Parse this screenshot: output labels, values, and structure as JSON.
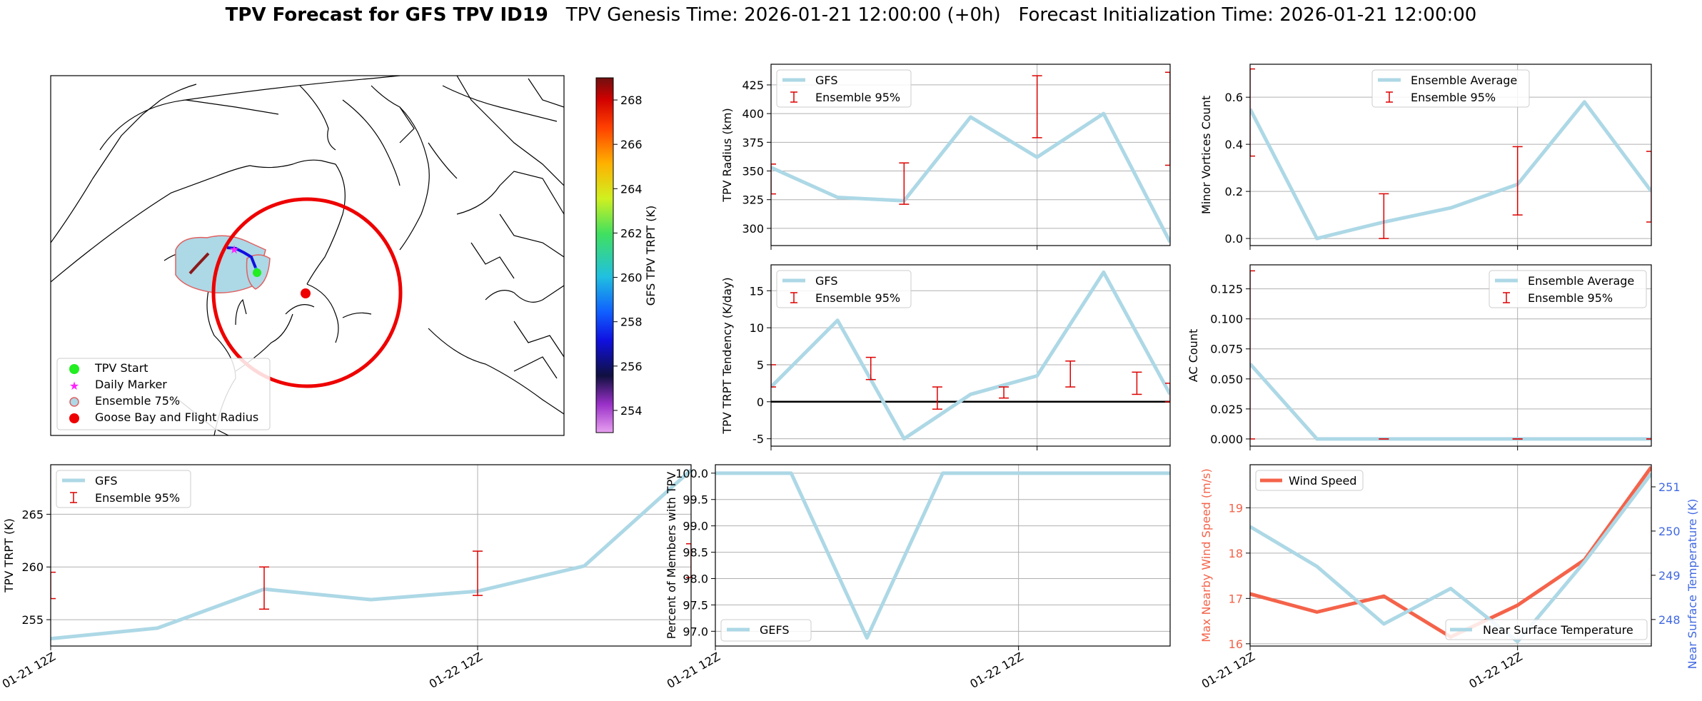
{
  "header": {
    "title_bold": "TPV Forecast for GFS TPV ID19",
    "genesis": "TPV Genesis Time: 2026-01-21 12:00:00 (+0h)",
    "init": "Forecast Initialization Time: 2026-01-21 12:00:00"
  },
  "map": {
    "colorbar_label": "GFS TPV TRPT (K)",
    "colorbar_ticks": [
      254,
      256,
      258,
      260,
      262,
      264,
      266,
      268
    ],
    "colorbar_range": [
      253,
      269
    ],
    "legend": [
      "TPV Start",
      "Daily Marker",
      "Ensemble 75%",
      "Goose Bay and Flight Radius"
    ],
    "colors": {
      "start": "#22ee22",
      "marker": "#ff22ff",
      "ensemble_fill": "#add8e6",
      "ensemble_edge": "#e06060",
      "goose": "#ee0000"
    }
  },
  "chart_data": [
    {
      "id": "radius",
      "type": "line",
      "x": [
        "2026-01-21 12Z",
        "2026-01-21 18Z",
        "2026-01-22 00Z",
        "2026-01-22 06Z",
        "2026-01-22 12Z",
        "2026-01-22 18Z",
        "2026-01-23 00Z"
      ],
      "series": [
        {
          "name": "GFS",
          "values": [
            353,
            327,
            324,
            397,
            362,
            400,
            288
          ],
          "color": "#add8e6"
        }
      ],
      "errorbars": {
        "name": "Ensemble 95%",
        "x": [
          "2026-01-21 12Z",
          "2026-01-22 00Z",
          "2026-01-22 12Z",
          "2026-01-23 00Z"
        ],
        "low": [
          330,
          321,
          379,
          355
        ],
        "high": [
          356,
          357,
          433,
          436
        ]
      },
      "ylabel": "TPV Radius (km)",
      "yticks": [
        300,
        325,
        350,
        375,
        400,
        425
      ],
      "ylim": [
        285,
        443
      ],
      "legend": "top-left",
      "grid": true
    },
    {
      "id": "minor",
      "type": "line",
      "x": [
        "2026-01-21 12Z",
        "2026-01-21 18Z",
        "2026-01-22 00Z",
        "2026-01-22 06Z",
        "2026-01-22 12Z",
        "2026-01-22 18Z",
        "2026-01-23 00Z"
      ],
      "series": [
        {
          "name": "Ensemble Average",
          "values": [
            0.55,
            0.0,
            0.07,
            0.13,
            0.23,
            0.58,
            0.2
          ],
          "color": "#add8e6"
        }
      ],
      "errorbars": {
        "name": "Ensemble 95%",
        "x": [
          "2026-01-21 12Z",
          "2026-01-22 00Z",
          "2026-01-22 12Z",
          "2026-01-23 00Z"
        ],
        "low": [
          0.35,
          0.0,
          0.1,
          0.07
        ],
        "high": [
          0.72,
          0.19,
          0.39,
          0.37
        ]
      },
      "ylabel": "Minor Vortices Count",
      "yticks": [
        0.0,
        0.2,
        0.4,
        0.6
      ],
      "ytick_labels": [
        "0.0",
        "0.2",
        "0.4",
        "0.6"
      ],
      "ylim": [
        -0.03,
        0.74
      ],
      "legend": "top-center",
      "grid": true
    },
    {
      "id": "tendency",
      "type": "line",
      "x": [
        "2026-01-21 12Z",
        "2026-01-21 18Z",
        "2026-01-22 00Z",
        "2026-01-22 06Z",
        "2026-01-22 12Z",
        "2026-01-22 18Z",
        "2026-01-23 00Z"
      ],
      "series": [
        {
          "name": "GFS",
          "values": [
            2,
            11,
            -5,
            1,
            3.5,
            17.5,
            1
          ],
          "color": "#add8e6"
        }
      ],
      "errorbars": {
        "name": "Ensemble 95%",
        "x": [
          "2026-01-21 12Z",
          "2026-01-21 21Z",
          "2026-01-22 03Z",
          "2026-01-22 09Z",
          "2026-01-22 15Z",
          "2026-01-22 21Z",
          "2026-01-23 00Z"
        ],
        "low": [
          2,
          3,
          -1,
          0.5,
          2,
          1,
          0
        ],
        "high": [
          5,
          6,
          2,
          2,
          5.5,
          4,
          2.5
        ]
      },
      "ylabel": "TPV TRPT Tendency (K/day)",
      "yticks": [
        -5,
        0,
        5,
        10,
        15
      ],
      "ylim": [
        -6,
        18.5
      ],
      "zero_line": true,
      "legend": "top-left",
      "grid": true
    },
    {
      "id": "ac",
      "type": "line",
      "x": [
        "2026-01-21 12Z",
        "2026-01-21 18Z",
        "2026-01-22 00Z",
        "2026-01-22 06Z",
        "2026-01-22 12Z",
        "2026-01-22 18Z",
        "2026-01-23 00Z"
      ],
      "series": [
        {
          "name": "Ensemble Average",
          "values": [
            0.0625,
            0,
            0,
            0,
            0,
            0,
            0
          ],
          "color": "#add8e6"
        }
      ],
      "errorbars": {
        "name": "Ensemble 95%",
        "x": [
          "2026-01-21 12Z",
          "2026-01-22 00Z",
          "2026-01-22 12Z",
          "2026-01-23 00Z"
        ],
        "low": [
          0,
          0,
          0,
          0
        ],
        "high": [
          0.14,
          0,
          0,
          0
        ]
      },
      "ylabel": "AC Count",
      "yticks": [
        0.0,
        0.025,
        0.05,
        0.075,
        0.1,
        0.125
      ],
      "ytick_labels": [
        "0.000",
        "0.025",
        "0.050",
        "0.075",
        "0.100",
        "0.125"
      ],
      "ylim": [
        -0.006,
        0.145
      ],
      "legend": "top-right",
      "grid": true
    },
    {
      "id": "trpt",
      "type": "line",
      "x": [
        "2026-01-21 12Z",
        "2026-01-21 18Z",
        "2026-01-22 00Z",
        "2026-01-22 06Z",
        "2026-01-22 12Z",
        "2026-01-22 18Z",
        "2026-01-23 00Z"
      ],
      "series": [
        {
          "name": "GFS",
          "values": [
            253.2,
            254.2,
            257.9,
            256.9,
            257.7,
            260.1,
            269.2
          ],
          "color": "#add8e6"
        }
      ],
      "errorbars": {
        "name": "Ensemble 95%",
        "x": [
          "2026-01-21 12Z",
          "2026-01-22 00Z",
          "2026-01-22 12Z",
          "2026-01-23 00Z"
        ],
        "low": [
          257,
          256,
          257.3,
          259
        ],
        "high": [
          259.5,
          260,
          261.5,
          262.2
        ]
      },
      "ylabel": "TPV TRPT (K)",
      "yticks": [
        255,
        260,
        265
      ],
      "ylim": [
        252.5,
        269.7
      ],
      "legend": "top-left",
      "grid": true
    },
    {
      "id": "percent",
      "type": "line",
      "x": [
        "2026-01-21 12Z",
        "2026-01-21 18Z",
        "2026-01-22 00Z",
        "2026-01-22 06Z",
        "2026-01-22 12Z",
        "2026-01-22 18Z",
        "2026-01-23 00Z"
      ],
      "series": [
        {
          "name": "GEFS",
          "values": [
            100,
            100,
            96.875,
            100,
            100,
            100,
            100
          ],
          "color": "#add8e6"
        }
      ],
      "ylabel": "Percent of Members with TPV",
      "yticks": [
        97.0,
        97.5,
        98.0,
        98.5,
        99.0,
        99.5,
        100.0
      ],
      "ytick_labels": [
        "97.0",
        "97.5",
        "98.0",
        "98.5",
        "99.0",
        "99.5",
        "100.0"
      ],
      "ylim": [
        96.72,
        100.16
      ],
      "legend": "bottom-left",
      "grid": true
    },
    {
      "id": "wind",
      "type": "line",
      "x": [
        "2026-01-21 12Z",
        "2026-01-21 18Z",
        "2026-01-22 00Z",
        "2026-01-22 06Z",
        "2026-01-22 12Z",
        "2026-01-22 18Z",
        "2026-01-23 00Z"
      ],
      "series": [
        {
          "name": "Wind Speed",
          "values": [
            17.1,
            16.7,
            17.05,
            16.15,
            16.85,
            17.85,
            19.9
          ],
          "color": "#f4634a",
          "axis": "left"
        },
        {
          "name": "Near Surface Temperature",
          "values": [
            250.1,
            249.2,
            247.9,
            248.7,
            247.5,
            249.3,
            251.3
          ],
          "color": "#add8e6",
          "axis": "right"
        }
      ],
      "ylabel": "Max Nearby Wind Speed (m/s)",
      "yticks": [
        16,
        17,
        18,
        19
      ],
      "ylim": [
        15.95,
        19.95
      ],
      "ylabel_right": "Near Surface Temperature (K)",
      "yticks_right": [
        248,
        249,
        250,
        251
      ],
      "ylim_right": [
        247.4,
        251.5
      ],
      "legend": "top-left / bottom-right",
      "grid": true
    }
  ],
  "x_tick_labels": [
    "01-21 12Z",
    "01-22 12Z"
  ]
}
